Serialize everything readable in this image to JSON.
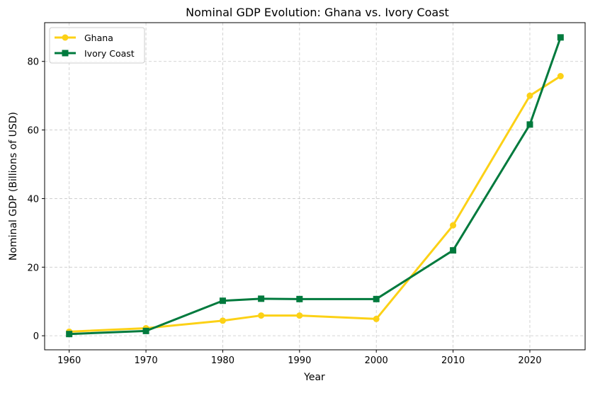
{
  "chart_data": {
    "type": "line",
    "title": "Nominal GDP Evolution: Ghana vs. Ivory Coast",
    "xlabel": "Year",
    "ylabel": "Nominal GDP (Billions of USD)",
    "xlim": [
      1956.8,
      2027.2
    ],
    "ylim": [
      -4.1,
      91.3
    ],
    "xticks": [
      1960,
      1970,
      1980,
      1990,
      2000,
      2010,
      2020
    ],
    "yticks": [
      0,
      20,
      40,
      60,
      80
    ],
    "grid": true,
    "legend_position": "top-left",
    "x": [
      1960,
      1970,
      1980,
      1985,
      1990,
      2000,
      2010,
      2020,
      2024
    ],
    "series": [
      {
        "name": "Ghana",
        "color": "#FCD116",
        "marker": "circle",
        "values": [
          1.2,
          2.2,
          4.4,
          5.9,
          5.9,
          4.9,
          32.2,
          70.0,
          75.7
        ]
      },
      {
        "name": "Ivory Coast",
        "color": "#007A3D",
        "marker": "square",
        "values": [
          0.5,
          1.4,
          10.2,
          10.8,
          10.7,
          10.7,
          24.9,
          61.6,
          87.0
        ]
      }
    ]
  }
}
